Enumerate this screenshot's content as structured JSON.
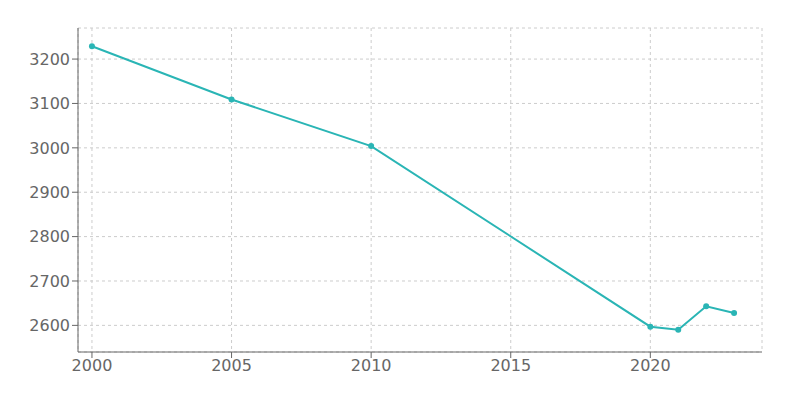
{
  "chart_data": {
    "type": "line",
    "x": [
      2000,
      2005,
      2010,
      2020,
      2021,
      2022,
      2023
    ],
    "values": [
      3229,
      3109,
      3004,
      2597,
      2590,
      2643,
      2628
    ],
    "color": "#2ab5b5",
    "marker": "circle",
    "xlim": [
      1999.5,
      2024
    ],
    "xticks": [
      2000,
      2005,
      2010,
      2015,
      2020
    ],
    "ylim": [
      2540,
      3270
    ],
    "yticks": [
      2600,
      2700,
      2800,
      2900,
      3000,
      3100,
      3200
    ],
    "grid": true
  }
}
